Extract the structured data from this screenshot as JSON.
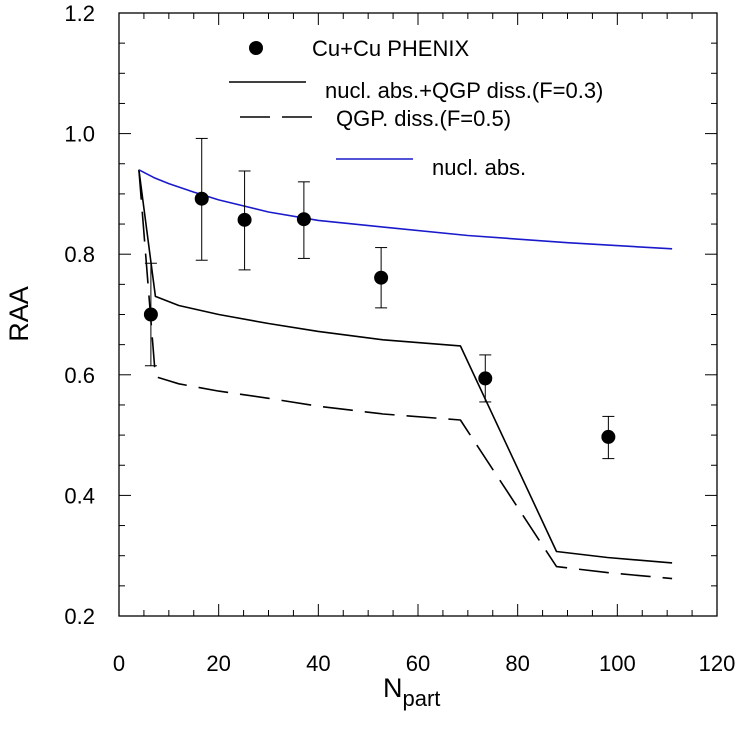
{
  "chart_data": {
    "type": "line",
    "xlabel": "N",
    "xlabel_sub": "part",
    "ylabel": "RAA",
    "xlim": [
      0,
      120
    ],
    "ylim": [
      0.2,
      1.2
    ],
    "xticks": [
      0,
      20,
      40,
      60,
      80,
      100,
      120
    ],
    "xtick_labels": [
      "0",
      "20",
      "40",
      "60",
      "80",
      "100",
      "120"
    ],
    "yticks": [
      0.2,
      0.4,
      0.6,
      0.8,
      1.0,
      1.2
    ],
    "ytick_labels": [
      "0.2",
      "0.4",
      "0.6",
      "0.8",
      "1.0",
      "1.2"
    ],
    "grid": false,
    "legend_position": "top",
    "points": {
      "name": "Cu+Cu PHENIX",
      "color": "#000000",
      "x": [
        6.4,
        16.6,
        25.2,
        37.1,
        52.6,
        73.5,
        98.2
      ],
      "y": [
        0.7,
        0.892,
        0.857,
        0.858,
        0.761,
        0.594,
        0.497
      ],
      "err_low": [
        0.085,
        0.102,
        0.083,
        0.065,
        0.05,
        0.039,
        0.036
      ],
      "err_high": [
        0.085,
        0.1,
        0.081,
        0.062,
        0.05,
        0.039,
        0.034
      ]
    },
    "series": [
      {
        "name": "nucl. abs.+QGP diss.(F=0.3)",
        "style": "solid",
        "color": "#000000",
        "x": [
          4.0,
          7.3,
          12.0,
          20.0,
          30.0,
          40.0,
          53.0,
          68.5,
          87.8,
          98.0,
          111.0
        ],
        "y": [
          0.94,
          0.73,
          0.715,
          0.7,
          0.685,
          0.672,
          0.658,
          0.648,
          0.307,
          0.297,
          0.288
        ]
      },
      {
        "name": "QGP. diss.(F=0.5)",
        "style": "dashed",
        "color": "#000000",
        "x": [
          4.0,
          7.3,
          12.0,
          20.0,
          30.0,
          40.0,
          53.0,
          68.5,
          87.8,
          98.0,
          111.0
        ],
        "y": [
          0.94,
          0.597,
          0.585,
          0.573,
          0.561,
          0.548,
          0.535,
          0.525,
          0.282,
          0.272,
          0.262
        ]
      },
      {
        "name": "nucl. abs.",
        "style": "solid",
        "color": "#1a1acc",
        "x": [
          4.0,
          7.0,
          10.0,
          15.0,
          20.0,
          30.0,
          40.0,
          53.0,
          70.0,
          90.0,
          111.0
        ],
        "y": [
          0.94,
          0.927,
          0.917,
          0.903,
          0.89,
          0.87,
          0.856,
          0.845,
          0.831,
          0.819,
          0.809
        ]
      }
    ]
  }
}
